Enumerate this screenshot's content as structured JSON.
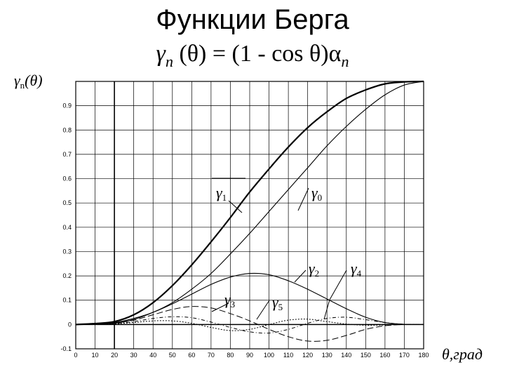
{
  "title": "Функции Берга",
  "formula": {
    "lhs_symbol": "γ",
    "lhs_sub": "n",
    "body": "(θ) = (1 - cos θ)α",
    "rhs_sub": "n"
  },
  "chart_data": {
    "type": "line",
    "ylabel": "γn(θ)",
    "xlabel": "θ,град",
    "xlim": [
      0,
      180
    ],
    "ylim": [
      -0.1,
      1.0
    ],
    "x_ticks": [
      "0",
      "10",
      "20",
      "30",
      "40",
      "50",
      "60",
      "70",
      "80",
      "90",
      "100",
      "110",
      "120",
      "130",
      "140",
      "150",
      "160",
      "170",
      "180"
    ],
    "y_ticks": [
      "-0.1",
      "0",
      "0.1",
      "0.2",
      "0.3",
      "0.4",
      "0.5",
      "0.6",
      "0.7",
      "0.8",
      "0.9"
    ],
    "grid": true,
    "vertical_marker_x": 20,
    "x": [
      0,
      10,
      20,
      30,
      40,
      50,
      60,
      70,
      80,
      90,
      100,
      110,
      120,
      130,
      140,
      150,
      160,
      170,
      180
    ],
    "series": [
      {
        "name": "γ0",
        "values": [
          0,
          0.002,
          0.006,
          0.021,
          0.05,
          0.09,
          0.145,
          0.21,
          0.29,
          0.375,
          0.465,
          0.555,
          0.645,
          0.735,
          0.815,
          0.885,
          0.945,
          0.985,
          1.0
        ]
      },
      {
        "name": "γ1",
        "values": [
          0,
          0.004,
          0.012,
          0.04,
          0.09,
          0.16,
          0.245,
          0.34,
          0.44,
          0.545,
          0.64,
          0.73,
          0.81,
          0.875,
          0.93,
          0.965,
          0.99,
          0.998,
          1.0
        ]
      },
      {
        "name": "γ2",
        "values": [
          0,
          0.003,
          0.008,
          0.025,
          0.05,
          0.085,
          0.125,
          0.165,
          0.195,
          0.21,
          0.205,
          0.18,
          0.145,
          0.105,
          0.065,
          0.03,
          0.008,
          0.001,
          0
        ]
      },
      {
        "name": "γ3",
        "values": [
          0,
          0.002,
          0.005,
          0.018,
          0.04,
          0.062,
          0.074,
          0.068,
          0.045,
          0.015,
          -0.02,
          -0.05,
          -0.068,
          -0.065,
          -0.045,
          -0.02,
          -0.005,
          0,
          0
        ]
      },
      {
        "name": "γ4",
        "values": [
          0,
          0.001,
          0.004,
          0.012,
          0.025,
          0.032,
          0.028,
          0.01,
          -0.012,
          -0.03,
          -0.035,
          -0.02,
          0.005,
          0.025,
          0.03,
          0.02,
          0.008,
          0.001,
          0
        ]
      },
      {
        "name": "γ5",
        "values": [
          0,
          0.001,
          0.003,
          0.008,
          0.015,
          0.015,
          0.005,
          -0.012,
          -0.025,
          -0.02,
          0.0,
          0.018,
          0.022,
          0.012,
          0.002,
          -0.003,
          -0.002,
          0,
          0
        ]
      }
    ]
  },
  "labels": {
    "g0": {
      "symbol": "γ",
      "sub": "0"
    },
    "g1": {
      "symbol": "γ",
      "sub": "1"
    },
    "g2": {
      "symbol": "γ",
      "sub": "2"
    },
    "g3": {
      "symbol": "γ",
      "sub": "3"
    },
    "g4": {
      "symbol": "γ",
      "sub": "4"
    },
    "g5": {
      "symbol": "γ",
      "sub": "5"
    },
    "ylabel_symbol": "γ",
    "ylabel_sub": "n",
    "ylabel_arg": "(θ)",
    "xlabel_text": "θ,град"
  }
}
